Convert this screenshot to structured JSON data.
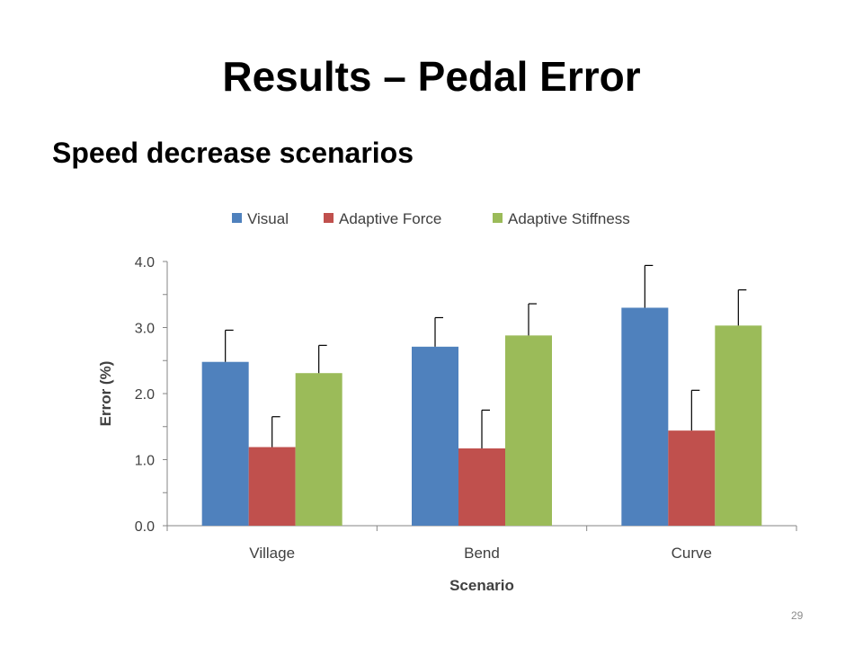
{
  "slide": {
    "title": "Results – Pedal Error",
    "subtitle": "Speed decrease scenarios",
    "page_number": "29"
  },
  "chart_data": {
    "type": "bar",
    "categories": [
      "Village",
      "Bend",
      "Curve"
    ],
    "series": [
      {
        "name": "Visual",
        "color": "#4f81bd",
        "values": [
          2.48,
          2.71,
          3.3
        ],
        "errors": [
          0.48,
          0.44,
          0.64
        ]
      },
      {
        "name": "Adaptive Force",
        "color": "#c0504d",
        "values": [
          1.19,
          1.17,
          1.44
        ],
        "errors": [
          0.46,
          0.58,
          0.61
        ]
      },
      {
        "name": "Adaptive Stiffness",
        "color": "#9bbb59",
        "values": [
          2.31,
          2.88,
          3.03
        ],
        "errors": [
          0.42,
          0.48,
          0.54
        ]
      }
    ],
    "xlabel": "Scenario",
    "ylabel": "Error (%)",
    "ylim": [
      0,
      4
    ],
    "y_ticks": [
      "0.0",
      "1.0",
      "2.0",
      "3.0",
      "4.0"
    ],
    "grid": false,
    "legend_position": "top"
  }
}
